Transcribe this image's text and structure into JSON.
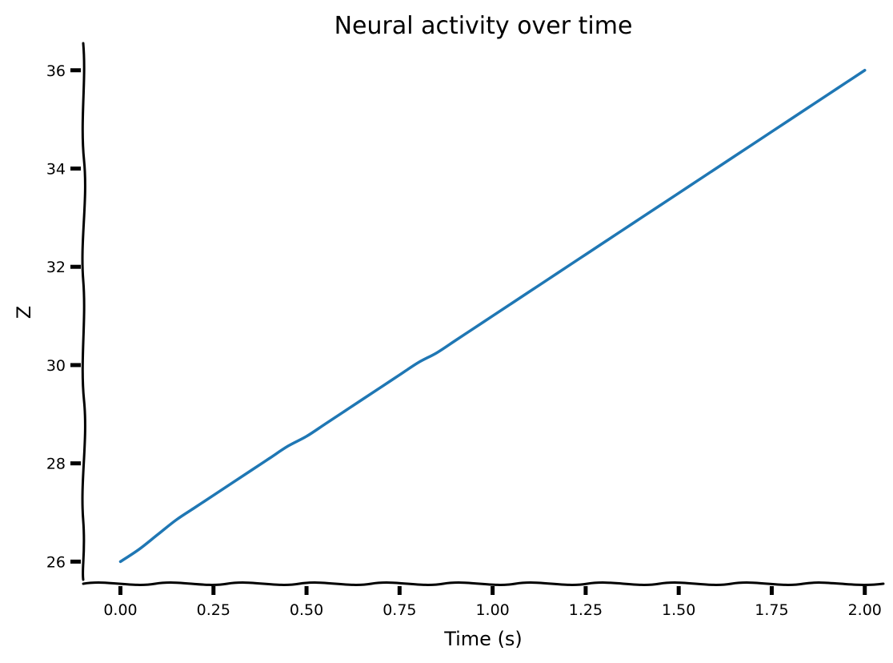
{
  "chart_data": {
    "type": "line",
    "title": "Neural activity over time",
    "xlabel": "Time (s)",
    "ylabel": "Z",
    "xlim": [
      -0.1,
      2.05
    ],
    "ylim": [
      25.55,
      36.55
    ],
    "xticks": [
      0.0,
      0.25,
      0.5,
      0.75,
      1.0,
      1.25,
      1.5,
      1.75,
      2.0
    ],
    "xtick_labels": [
      "0.00",
      "0.25",
      "0.50",
      "0.75",
      "1.00",
      "1.25",
      "1.50",
      "1.75",
      "2.00"
    ],
    "yticks": [
      26,
      28,
      30,
      32,
      34,
      36
    ],
    "ytick_labels": [
      "26",
      "28",
      "30",
      "32",
      "34",
      "36"
    ],
    "grid": false,
    "legend": "none",
    "series": [
      {
        "color": "#1f77b4",
        "x": [
          0.0,
          0.05,
          0.1,
          0.15,
          0.2,
          0.25,
          0.3,
          0.35,
          0.4,
          0.45,
          0.5,
          0.55,
          0.6,
          0.65,
          0.7,
          0.75,
          0.8,
          0.85,
          0.9,
          0.95,
          1.0,
          1.05,
          1.1,
          1.15,
          1.2,
          1.25,
          1.3,
          1.35,
          1.4,
          1.45,
          1.5,
          1.55,
          1.6,
          1.65,
          1.7,
          1.75,
          1.8,
          1.85,
          1.9,
          1.95,
          2.0
        ],
        "values": [
          26.0,
          26.25,
          26.55,
          26.85,
          27.1,
          27.35,
          27.6,
          27.85,
          28.1,
          28.35,
          28.55,
          28.8,
          29.05,
          29.3,
          29.55,
          29.8,
          30.05,
          30.25,
          30.5,
          30.75,
          31.0,
          31.25,
          31.5,
          31.75,
          32.0,
          32.25,
          32.5,
          32.75,
          33.0,
          33.25,
          33.5,
          33.75,
          34.0,
          34.25,
          34.5,
          34.75,
          35.0,
          35.25,
          35.5,
          35.75,
          36.0
        ]
      }
    ]
  }
}
